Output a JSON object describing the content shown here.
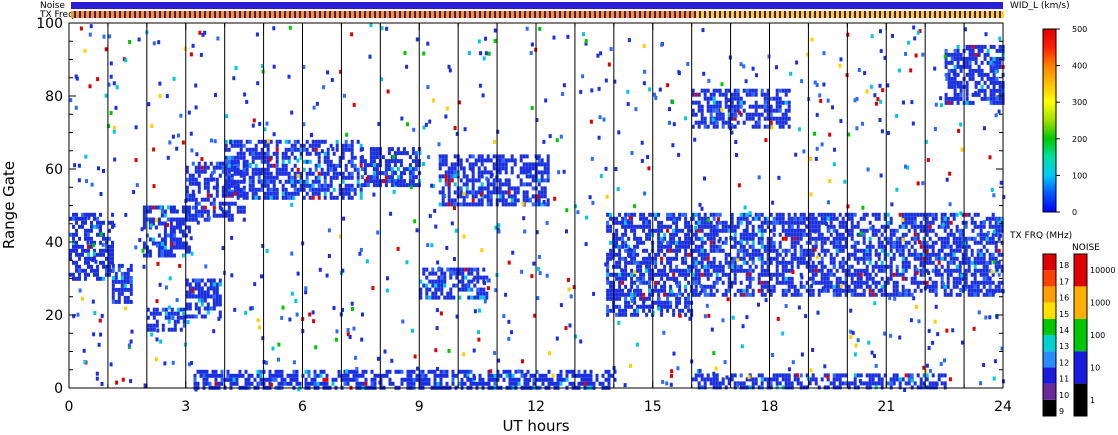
{
  "chart_data": {
    "type": "heatmap",
    "title": "",
    "xlabel": "UT hours",
    "ylabel": "Range Gate",
    "xlim": [
      0,
      24
    ],
    "ylim": [
      0,
      100
    ],
    "xticks": [
      0,
      3,
      6,
      9,
      12,
      15,
      18,
      21,
      24
    ],
    "yticks": [
      0,
      20,
      40,
      60,
      80,
      100
    ],
    "hour_lines": [
      1,
      2,
      3,
      4,
      5,
      6,
      7,
      8,
      9,
      10,
      11,
      12,
      13,
      14,
      15,
      16,
      17,
      18,
      19,
      20,
      21,
      22,
      23
    ],
    "status_bars": {
      "noise_label": "Noise",
      "freq_label": "TX Freq",
      "noise_color": "#2a1fd6",
      "freq_before_color": "#ff9900",
      "freq_after_color": "#ffd400",
      "freq_change_hour": 16
    },
    "echo_bands": [
      {
        "t0": 0.0,
        "t1": 1.1,
        "g0": 30,
        "g1": 48,
        "color": "#1a2fe0"
      },
      {
        "t0": 1.1,
        "t1": 1.6,
        "g0": 24,
        "g1": 34,
        "color": "#1a2fe0"
      },
      {
        "t0": 1.9,
        "t1": 3.1,
        "g0": 36,
        "g1": 50,
        "color": "#1a2fe0"
      },
      {
        "t0": 2.0,
        "t1": 3.0,
        "g0": 16,
        "g1": 22,
        "color": "#1a2fe0"
      },
      {
        "t0": 3.0,
        "t1": 3.9,
        "g0": 20,
        "g1": 30,
        "color": "#1a2fe0"
      },
      {
        "t0": 3.0,
        "t1": 4.5,
        "g0": 46,
        "g1": 62,
        "color": "#1a2fe0"
      },
      {
        "t0": 4.0,
        "t1": 7.5,
        "g0": 52,
        "g1": 68,
        "color": "#1a2fe0"
      },
      {
        "t0": 7.5,
        "t1": 9.0,
        "g0": 56,
        "g1": 66,
        "color": "#1a2fe0"
      },
      {
        "t0": 9.0,
        "t1": 10.7,
        "g0": 25,
        "g1": 33,
        "color": "#1a2fe0"
      },
      {
        "t0": 9.5,
        "t1": 12.3,
        "g0": 50,
        "g1": 64,
        "color": "#1a2fe0"
      },
      {
        "t0": 13.8,
        "t1": 16.0,
        "g0": 20,
        "g1": 48,
        "color": "#1a2fe0"
      },
      {
        "t0": 16.0,
        "t1": 24.0,
        "g0": 26,
        "g1": 48,
        "color": "#1a2fe0"
      },
      {
        "t0": 16.0,
        "t1": 18.5,
        "g0": 72,
        "g1": 82,
        "color": "#1a2fe0"
      },
      {
        "t0": 22.5,
        "t1": 24.0,
        "g0": 78,
        "g1": 94,
        "color": "#1a2fe0"
      },
      {
        "t0": 3.2,
        "t1": 14.0,
        "g0": 0,
        "g1": 5,
        "color": "#1a2fe0"
      },
      {
        "t0": 16.0,
        "t1": 22.5,
        "g0": 0,
        "g1": 4,
        "color": "#1a2fe0"
      }
    ],
    "colorbars": [
      {
        "title": "WID_L (km/s)",
        "type": "continuous",
        "min": 0,
        "max": 500,
        "ticks": [
          0,
          100,
          200,
          300,
          400,
          500
        ],
        "colors": [
          "#0000ff",
          "#0055ff",
          "#00c8ff",
          "#00e0a0",
          "#00c800",
          "#a0e000",
          "#ffff00",
          "#ffc000",
          "#ff8000",
          "#ff2000",
          "#e00000"
        ]
      },
      {
        "title": "TX FRQ (MHz)",
        "type": "discrete",
        "labels": [
          "9",
          "10",
          "11",
          "12",
          "13",
          "14",
          "15",
          "16",
          "17",
          "18"
        ],
        "colors": [
          "#000000",
          "#6a2a9a",
          "#1a1ae0",
          "#2a8aff",
          "#00d0d0",
          "#00c800",
          "#ffe000",
          "#ffa000",
          "#ff4000",
          "#e00000"
        ]
      },
      {
        "title": "NOISE",
        "type": "discrete",
        "labels": [
          "1",
          "10",
          "100",
          "1000",
          "10000"
        ],
        "colors": [
          "#000000",
          "#1a1ae0",
          "#00c800",
          "#ffb000",
          "#e00000"
        ]
      }
    ]
  }
}
